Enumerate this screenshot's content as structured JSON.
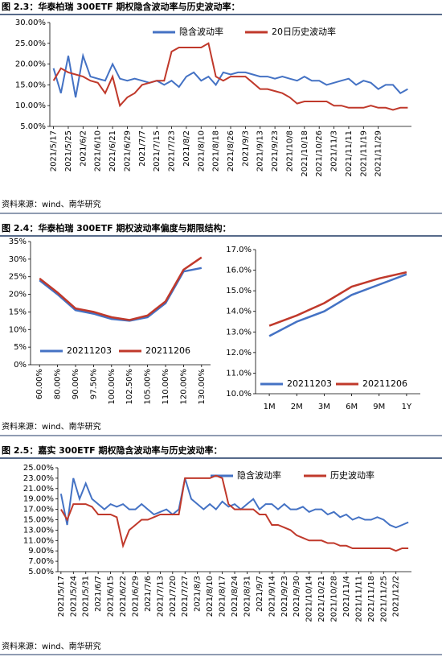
{
  "figures": [
    {
      "caption": "图 2.3：华泰柏瑞 300ETF 期权隐含波动率与历史波动率：",
      "source": "资料来源：wind、南华研究",
      "chart_data": {
        "type": "line",
        "categories": [
          "2021/5/17",
          null,
          "2021/5/25",
          null,
          "2021/6/2",
          null,
          "2021/6/10",
          null,
          "2021/6/21",
          null,
          "2021/6/29",
          null,
          "2021/7/7",
          null,
          "2021/7/15",
          null,
          "2021/7/23",
          null,
          "2021/8/2",
          null,
          "2021/8/10",
          null,
          "2021/8/18",
          null,
          "2021/8/26",
          null,
          "2021/9/3",
          null,
          "2021/9/13",
          null,
          "2021/9/23",
          null,
          "2021/10/8",
          null,
          "2021/10/18",
          null,
          "2021/10/26",
          null,
          "2021/11/3",
          null,
          "2021/11/11",
          null,
          "2021/11/19",
          null,
          "2021/11/29",
          null,
          null,
          null,
          null
        ],
        "series": [
          {
            "name": "隐含波动率",
            "color": "#4472c4",
            "values": [
              19,
              13,
              22,
              12,
              22,
              17,
              16.5,
              16,
              20,
              16.5,
              16,
              16.5,
              16,
              15.5,
              16,
              15,
              16,
              14.5,
              17,
              18,
              16,
              17,
              15,
              18,
              17.5,
              18,
              18,
              17.5,
              17,
              17,
              16.5,
              17,
              16.5,
              16,
              17,
              16,
              16,
              15,
              15.5,
              16,
              16.5,
              15,
              16,
              15.5,
              14,
              15,
              15,
              13,
              14
            ]
          },
          {
            "name": "20日历史波动率",
            "color": "#c0392b",
            "values": [
              16,
              19,
              18,
              17.5,
              17,
              16,
              15.5,
              13,
              17,
              10,
              12,
              13,
              15,
              15.5,
              16,
              16,
              23,
              24,
              24,
              24,
              24,
              25,
              17,
              16,
              17,
              17,
              17,
              15.5,
              14,
              14,
              13.5,
              13,
              12,
              10.5,
              11,
              11,
              11,
              11,
              10,
              10,
              9.5,
              9.5,
              9.5,
              10,
              9.5,
              9.5,
              9,
              9.5,
              9.5
            ]
          }
        ],
        "ylim": [
          5,
          30
        ],
        "yticks": [
          {
            "value": 5,
            "label": "5.00%"
          },
          {
            "value": 10,
            "label": "10.00%"
          },
          {
            "value": 15,
            "label": "15.00%"
          },
          {
            "value": 20,
            "label": "20.00%"
          },
          {
            "value": 25,
            "label": "25.00%"
          },
          {
            "value": 30,
            "label": "30.00%"
          }
        ],
        "legend": "top"
      }
    },
    {
      "caption": "图 2.4：华泰柏瑞 300ETF 期权波动率偏度与期限结构：",
      "source": "资料来源：wind、南华研究",
      "chart_data": [
        {
          "type": "line",
          "categories": [
            "60.00%",
            "80.00%",
            "90.00%",
            "97.50%",
            "100.00%",
            "102.50%",
            "105.00%",
            "110.00%",
            "120.00%",
            "130.00%"
          ],
          "series": [
            {
              "name": "20211203",
              "color": "#4472c4",
              "values": [
                24,
                20,
                15.5,
                14.5,
                13,
                12.5,
                13.5,
                17.5,
                26.5,
                27.5
              ]
            },
            {
              "name": "20211206",
              "color": "#c0392b",
              "values": [
                24.5,
                20.5,
                16,
                15,
                13.5,
                12.7,
                14,
                18,
                27,
                30.5
              ]
            }
          ],
          "ylim": [
            0,
            35
          ],
          "yticks": [
            {
              "value": 0,
              "label": "0%"
            },
            {
              "value": 5,
              "label": "5%"
            },
            {
              "value": 10,
              "label": "10%"
            },
            {
              "value": 15,
              "label": "15%"
            },
            {
              "value": 20,
              "label": "20%"
            },
            {
              "value": 25,
              "label": "25%"
            },
            {
              "value": 30,
              "label": "30%"
            },
            {
              "value": 35,
              "label": "35%"
            }
          ],
          "legend": "lower left"
        },
        {
          "type": "line",
          "categories": [
            "1M",
            "2M",
            "3M",
            "6M",
            "9M",
            "1Y"
          ],
          "series": [
            {
              "name": "20211203",
              "color": "#4472c4",
              "values": [
                12.8,
                13.5,
                14,
                14.8,
                15.3,
                15.8
              ]
            },
            {
              "name": "20211206",
              "color": "#c0392b",
              "values": [
                13.3,
                13.8,
                14.4,
                15.2,
                15.6,
                15.9
              ]
            }
          ],
          "ylim": [
            10,
            17
          ],
          "yticks": [
            {
              "value": 10,
              "label": "10.0%"
            },
            {
              "value": 11,
              "label": "11.0%"
            },
            {
              "value": 12,
              "label": "12.0%"
            },
            {
              "value": 13,
              "label": "13.0%"
            },
            {
              "value": 14,
              "label": "14.0%"
            },
            {
              "value": 15,
              "label": "15.0%"
            },
            {
              "value": 16,
              "label": "16.0%"
            },
            {
              "value": 17,
              "label": "17.0%"
            }
          ],
          "legend": "lower left"
        }
      ]
    },
    {
      "caption": "图 2.5：嘉实 300ETF 期权隐含波动率与历史波动率：",
      "source": "资料来源：wind、南华研究",
      "chart_data": {
        "type": "line",
        "categories": [
          "2021/5/17",
          null,
          "2021/5/24",
          null,
          "2021/5/31",
          null,
          "2021/6/7",
          null,
          "2021/6/15",
          null,
          "2021/6/22",
          null,
          "2021/6/29",
          null,
          "2021/7/6",
          null,
          "2021/7/13",
          null,
          "2021/7/20",
          null,
          "2021/7/27",
          null,
          "2021/8/3",
          null,
          "2021/8/10",
          null,
          "2021/8/17",
          null,
          "2021/8/24",
          null,
          "2021/8/31",
          null,
          "2021/9/7",
          null,
          "2021/9/14",
          null,
          "2021/9/23",
          null,
          "2021/9/30",
          null,
          "2021/10/14",
          null,
          "2021/10/21",
          null,
          "2021/10/28",
          null,
          "2021/11/4",
          null,
          "2021/11/11",
          null,
          "2021/11/18",
          null,
          "2021/11/25",
          null,
          "2021/12/2",
          null,
          null
        ],
        "series": [
          {
            "name": "隐含波动率",
            "color": "#4472c4",
            "values": [
              20,
              14,
              23,
              19,
              22,
              19,
              18,
              17,
              18,
              17.5,
              18,
              17,
              17,
              18,
              17,
              16,
              16.5,
              17,
              16,
              17,
              23,
              19,
              18,
              17,
              18,
              17,
              18.5,
              17.5,
              18,
              17,
              18,
              19,
              17,
              18,
              18,
              17,
              18,
              17,
              17,
              17.5,
              16.5,
              17,
              17,
              16,
              16.5,
              15.5,
              16,
              15,
              15.5,
              15,
              15,
              15.5,
              15,
              14,
              13.5,
              14,
              14.5
            ]
          },
          {
            "name": "历史波动率",
            "color": "#c0392b",
            "values": [
              17,
              15,
              18,
              18,
              18,
              17.5,
              16,
              16,
              16,
              15.5,
              10,
              13,
              14,
              15,
              15,
              15.5,
              16,
              16,
              16,
              16,
              23,
              23,
              23,
              23,
              23,
              23.5,
              23,
              18,
              17,
              17,
              17,
              17,
              16,
              16,
              14,
              14,
              13.5,
              13,
              12,
              11.5,
              11,
              11,
              11,
              10.5,
              10.5,
              10,
              10,
              9.5,
              9.5,
              9.5,
              9.5,
              9.5,
              9.5,
              9.5,
              9,
              9.5,
              9.5
            ]
          }
        ],
        "ylim": [
          5,
          25
        ],
        "yticks": [
          {
            "value": 5,
            "label": "5.00%"
          },
          {
            "value": 7,
            "label": "7.00%"
          },
          {
            "value": 9,
            "label": "9.00%"
          },
          {
            "value": 11,
            "label": "11.00%"
          },
          {
            "value": 13,
            "label": "13.00%"
          },
          {
            "value": 15,
            "label": "15.00%"
          },
          {
            "value": 17,
            "label": "17.00%"
          },
          {
            "value": 19,
            "label": "19.00%"
          },
          {
            "value": 21,
            "label": "21.00%"
          },
          {
            "value": 23,
            "label": "23.00%"
          },
          {
            "value": 25,
            "label": "25.00%"
          }
        ],
        "legend": "top right"
      }
    }
  ]
}
